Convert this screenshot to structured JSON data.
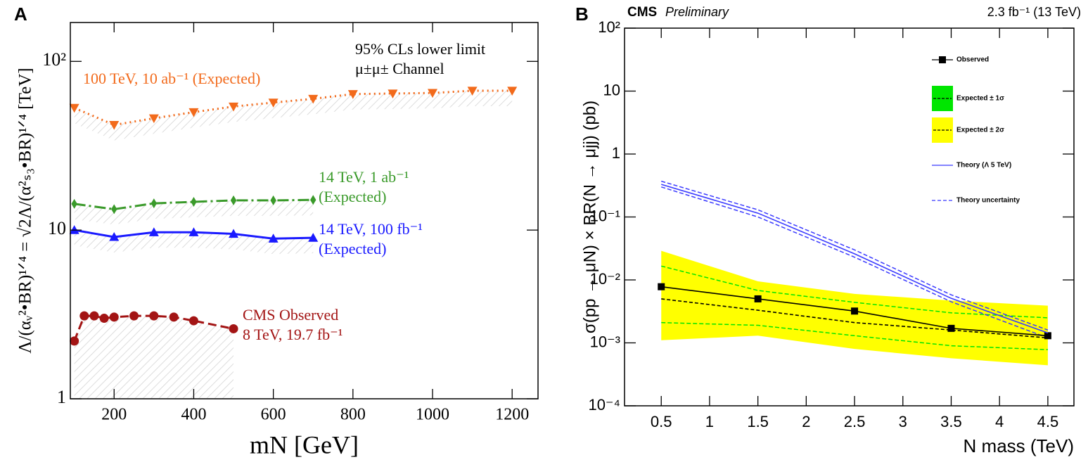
{
  "chart_data": [
    {
      "type": "line",
      "panel": "A",
      "log_y": true,
      "x_label": "mN [GeV]",
      "y_label": "Λ/(αᵥ²•BR)¹ᐟ⁴ = √2Λ/(α²ₛ₃•BR)¹ᐟ⁴ [TeV]",
      "annotations": [
        "95% CLs lower limit",
        "μ±μ± Channel"
      ],
      "xlim": [
        90,
        1265
      ],
      "ylim": [
        1,
        170
      ],
      "xticks": [
        200,
        400,
        600,
        800,
        1000,
        1200
      ],
      "yticks": [
        1,
        10,
        {
          "value": 100,
          "label": "10²"
        }
      ],
      "series": [
        {
          "name": "100 TeV, 10 ab⁻¹ (Expected)",
          "color": "#f26a1b",
          "marker": "triangle-down",
          "linestyle": "dotted",
          "x": [
            100,
            200,
            300,
            400,
            500,
            600,
            700,
            800,
            900,
            1000,
            1100,
            1200
          ],
          "values": [
            53,
            42,
            46,
            50,
            54,
            57,
            60,
            64,
            64.5,
            65,
            67,
            67
          ]
        },
        {
          "name": "14 TeV, 1 ab⁻¹\n(Expected)",
          "color": "#3a9a2a",
          "marker": "diamond",
          "linestyle": "dashdot",
          "x": [
            100,
            200,
            300,
            400,
            500,
            600,
            700
          ],
          "values": [
            14.3,
            13.3,
            14.4,
            14.7,
            15.0,
            15.0,
            15.1
          ]
        },
        {
          "name": "14 TeV, 100 fb⁻¹\n(Expected)",
          "color": "#1a1aff",
          "marker": "triangle-up",
          "linestyle": "solid",
          "x": [
            100,
            200,
            300,
            400,
            500,
            600,
            700
          ],
          "values": [
            10.0,
            9.1,
            9.7,
            9.7,
            9.5,
            8.9,
            9.0
          ]
        },
        {
          "name": "CMS Observed\n8 TeV, 19.7 fb⁻¹",
          "color": "#a31414",
          "marker": "circle",
          "linestyle": "dashed",
          "x": [
            100,
            125,
            150,
            175,
            200,
            250,
            300,
            350,
            400,
            500
          ],
          "values": [
            2.2,
            3.1,
            3.1,
            3.0,
            3.05,
            3.1,
            3.1,
            3.05,
            2.9,
            2.6
          ]
        }
      ]
    },
    {
      "type": "line",
      "panel": "B",
      "log_y": true,
      "title": "CMS",
      "subtitle": "Preliminary",
      "annotation": "2.3 fb⁻¹ (13 TeV)",
      "x_label": "N mass (TeV)",
      "y_label": "σ(pp → μN) × BR(N → μjj) (pb)",
      "legend": "upper right",
      "xlim": [
        0.12,
        4.77
      ],
      "ylim": [
        0.0001,
        100
      ],
      "xticks": [
        0.5,
        1,
        1.5,
        2,
        2.5,
        3,
        3.5,
        4,
        4.5
      ],
      "yticks": [
        {
          "value": 0.0001,
          "label": "10⁻⁴"
        },
        {
          "value": 0.001,
          "label": "10⁻³"
        },
        {
          "value": 0.01,
          "label": "10⁻²"
        },
        {
          "value": 0.1,
          "label": "10⁻¹"
        },
        1,
        10,
        {
          "value": 100,
          "label": "10²"
        }
      ],
      "x": [
        0.5,
        1.5,
        2.5,
        3.5,
        4.5
      ],
      "series": [
        {
          "name": "Observed",
          "color": "#000000",
          "marker": "square",
          "linestyle": "solid",
          "values": [
            0.0078,
            0.005,
            0.0032,
            0.0017,
            0.0013
          ]
        },
        {
          "name": "Expected ± 1σ",
          "color": "#00e600",
          "linestyle": "dashed",
          "values": [
            0.005,
            0.0033,
            0.0021,
            0.0016,
            0.0012
          ],
          "lower": [
            0.0021,
            0.0019,
            0.0013,
            0.0009,
            0.00078
          ],
          "upper": [
            0.0166,
            0.0068,
            0.0044,
            0.003,
            0.0025
          ]
        },
        {
          "name": "Expected ± 2σ",
          "color": "#ffff00",
          "lower": [
            0.0011,
            0.0013,
            0.0008,
            0.00057,
            0.00044
          ],
          "upper": [
            0.029,
            0.0095,
            0.006,
            0.0047,
            0.0039
          ]
        },
        {
          "name": "Theory (Λ 5 TeV)",
          "color": "#3a3aff",
          "linestyle": "solid",
          "values": [
            0.33,
            0.115,
            0.026,
            0.0051,
            0.00144
          ]
        },
        {
          "name": "Theory uncertainty",
          "color": "#3a3aff",
          "linestyle": "dashed",
          "lower": [
            0.3,
            0.1,
            0.023,
            0.0045,
            0.0012
          ],
          "upper": [
            0.37,
            0.13,
            0.03,
            0.0058,
            0.0016
          ]
        }
      ]
    }
  ]
}
